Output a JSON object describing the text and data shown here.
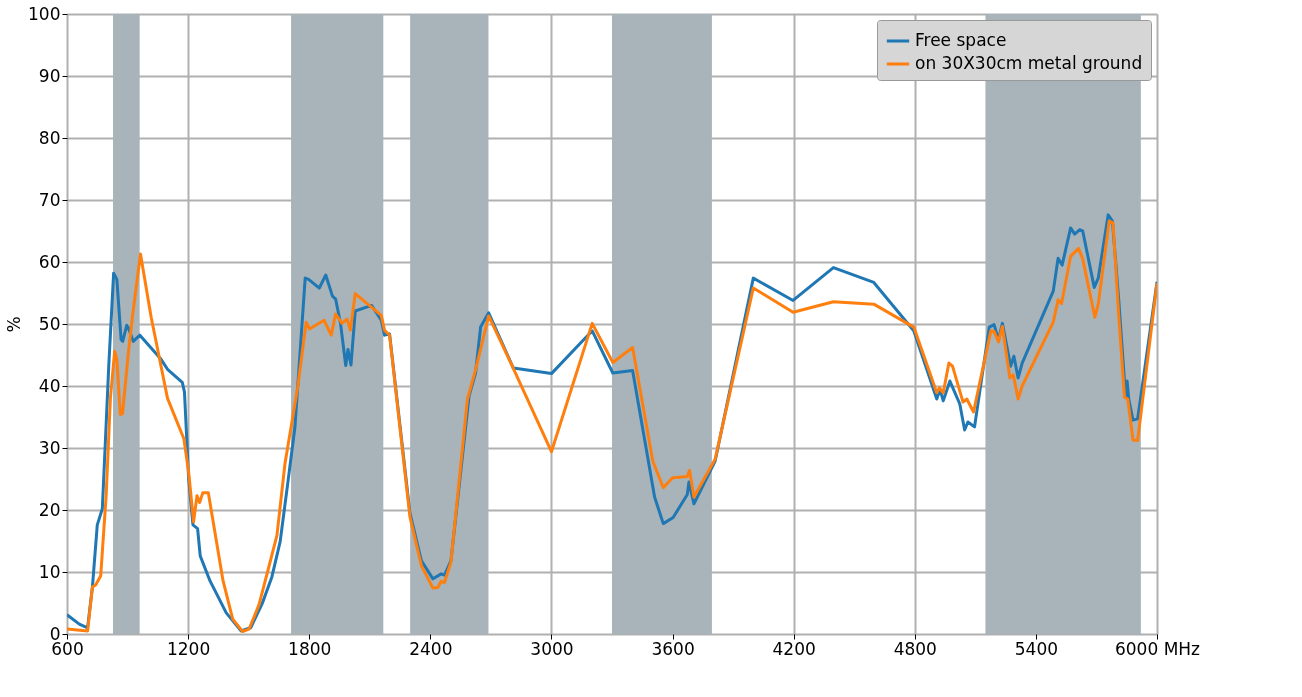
{
  "chart_data": {
    "type": "line",
    "ylabel": "%",
    "xlim": [
      600,
      6000
    ],
    "ylim": [
      0,
      100
    ],
    "xticks": [
      600,
      1200,
      1800,
      2400,
      3000,
      3600,
      4200,
      4800,
      5400,
      {
        "value": 6000,
        "label": "6000 MHz"
      }
    ],
    "yticks": [
      0,
      10,
      20,
      30,
      40,
      50,
      60,
      70,
      80,
      90,
      100
    ],
    "grid": true,
    "legend": "top right",
    "line_style": "solid",
    "marker": "none",
    "bands": [
      {
        "axis": "x",
        "from": 828,
        "to": 960,
        "color": "#a9b4ba"
      },
      {
        "axis": "x",
        "from": 1710,
        "to": 2167,
        "color": "#a9b4ba"
      },
      {
        "axis": "x",
        "from": 2300,
        "to": 2688,
        "color": "#a9b4ba"
      },
      {
        "axis": "x",
        "from": 3300,
        "to": 3795,
        "color": "#a9b4ba"
      },
      {
        "axis": "x",
        "from": 5150,
        "to": 5920,
        "color": "#a9b4ba"
      }
    ],
    "series": [
      {
        "name": "Free space",
        "color": "#1f77b4",
        "x": [
          600,
          661,
          702,
          726,
          750,
          775,
          791,
          807,
          831,
          847,
          868,
          876,
          896,
          904,
          928,
          961,
          1066,
          1098,
          1171,
          1182,
          1203,
          1224,
          1247,
          1260,
          1308,
          1389,
          1462,
          1510,
          1567,
          1615,
          1656,
          1696,
          1729,
          1780,
          1797,
          1850,
          1882,
          1915,
          1931,
          1955,
          1981,
          1992,
          2007,
          2028,
          2109,
          2157,
          2173,
          2198,
          2299,
          2356,
          2413,
          2454,
          2470,
          2502,
          2592,
          2624,
          2649,
          2689,
          2811,
          3000,
          3202,
          3304,
          3402,
          3511,
          3554,
          3603,
          3673,
          3681,
          3706,
          3811,
          4000,
          4197,
          4397,
          4597,
          4795,
          4909,
          4925,
          4941,
          4974,
          5023,
          5047,
          5063,
          5096,
          5169,
          5193,
          5215,
          5234,
          5275,
          5291,
          5312,
          5332,
          5486,
          5510,
          5530,
          5572,
          5592,
          5616,
          5632,
          5689,
          5709,
          5758,
          5779,
          5811,
          5844,
          5852,
          5860,
          5881,
          5904,
          6000
        ],
        "values": [
          3.1,
          1.6,
          1.0,
          7.6,
          17.6,
          20.2,
          31.7,
          43.3,
          58.2,
          57.2,
          47.5,
          47.2,
          49.8,
          49.4,
          47.2,
          48.2,
          44.3,
          42.7,
          40.6,
          39.0,
          24.9,
          17.6,
          17.0,
          12.6,
          8.6,
          3.4,
          0.5,
          1.0,
          4.9,
          9.2,
          14.9,
          24.9,
          33.3,
          57.4,
          57.2,
          55.8,
          57.9,
          54.5,
          54.0,
          50.1,
          43.3,
          45.9,
          43.4,
          52.1,
          53.0,
          50.6,
          48.2,
          48.4,
          19.5,
          11.8,
          8.9,
          9.7,
          9.5,
          11.8,
          38.4,
          42.1,
          49.5,
          51.8,
          42.9,
          42.0,
          48.9,
          42.1,
          42.5,
          22.1,
          17.8,
          18.8,
          22.5,
          24.5,
          21.0,
          27.9,
          57.4,
          53.8,
          59.1,
          56.7,
          48.9,
          37.9,
          39.5,
          37.6,
          40.8,
          37.1,
          32.9,
          34.2,
          33.4,
          49.5,
          49.9,
          47.4,
          50.1,
          43.2,
          44.8,
          41.3,
          43.7,
          55.3,
          60.6,
          59.5,
          65.5,
          64.5,
          65.2,
          65.0,
          55.9,
          57.4,
          67.6,
          66.6,
          53.7,
          38.4,
          40.8,
          37.9,
          34.5,
          34.7,
          56.8
        ]
      },
      {
        "name": "on 30X30cm metal ground",
        "color": "#ff7f0e",
        "x": [
          600,
          702,
          726,
          742,
          767,
          794,
          815,
          836,
          847,
          864,
          875,
          904,
          928,
          964,
          1017,
          1098,
          1179,
          1203,
          1227,
          1244,
          1257,
          1273,
          1300,
          1373,
          1421,
          1470,
          1502,
          1551,
          1599,
          1640,
          1680,
          1742,
          1785,
          1801,
          1874,
          1909,
          1931,
          1963,
          1987,
          2004,
          2028,
          2157,
          2173,
          2198,
          2299,
          2356,
          2413,
          2437,
          2454,
          2470,
          2502,
          2584,
          2624,
          2689,
          2803,
          3000,
          3202,
          3304,
          3402,
          3502,
          3554,
          3600,
          3673,
          3684,
          3706,
          3811,
          4000,
          4197,
          4397,
          4597,
          4795,
          4909,
          4922,
          4941,
          4969,
          4987,
          5039,
          5058,
          5091,
          5177,
          5193,
          5215,
          5234,
          5271,
          5288,
          5312,
          5332,
          5486,
          5510,
          5527,
          5572,
          5611,
          5632,
          5692,
          5709,
          5763,
          5782,
          5811,
          5839,
          5855,
          5881,
          5904,
          6000
        ],
        "values": [
          0.8,
          0.5,
          7.6,
          7.9,
          9.4,
          22.3,
          38.0,
          45.6,
          44.3,
          35.4,
          35.5,
          45.4,
          52.2,
          61.3,
          51.1,
          38.0,
          31.5,
          26.0,
          18.1,
          22.3,
          21.2,
          22.8,
          22.8,
          8.6,
          2.4,
          0.4,
          0.8,
          4.7,
          10.7,
          15.9,
          27.5,
          39.6,
          50.3,
          49.2,
          50.6,
          48.2,
          51.6,
          50.1,
          50.8,
          49.0,
          54.9,
          51.4,
          49.0,
          48.2,
          18.9,
          11.0,
          7.4,
          7.5,
          8.5,
          8.3,
          11.6,
          37.9,
          42.6,
          51.3,
          43.4,
          29.4,
          50.1,
          43.8,
          46.2,
          27.9,
          23.6,
          25.2,
          25.4,
          26.4,
          22.1,
          28.2,
          55.8,
          51.9,
          53.6,
          53.2,
          49.5,
          38.9,
          39.7,
          38.9,
          43.7,
          43.2,
          37.4,
          37.9,
          35.8,
          48.9,
          48.8,
          47.1,
          49.6,
          41.3,
          41.8,
          37.9,
          40.0,
          50.3,
          53.9,
          53.3,
          60.9,
          62.2,
          60.5,
          51.1,
          53.2,
          66.6,
          66.3,
          51.1,
          38.2,
          37.9,
          31.3,
          31.2,
          56.6
        ]
      }
    ]
  }
}
